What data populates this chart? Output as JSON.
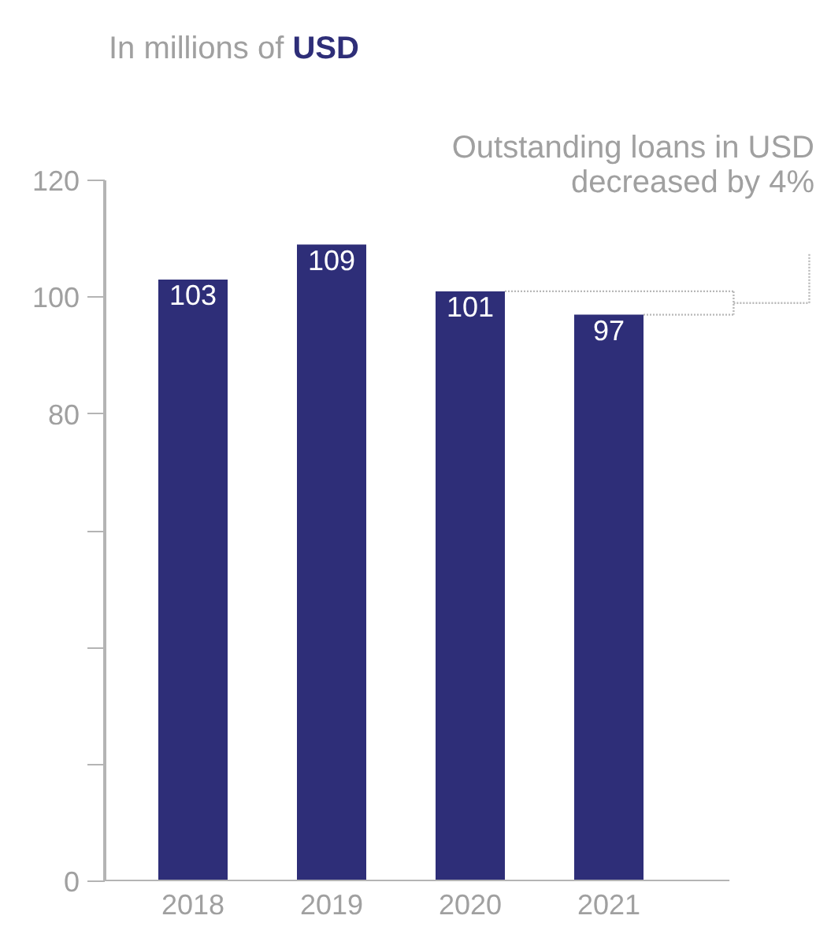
{
  "chart_data": {
    "type": "bar",
    "title": "In millions of USD",
    "categories": [
      "2018",
      "2019",
      "2020",
      "2021"
    ],
    "values": [
      103,
      109,
      101,
      97
    ],
    "color": "#2e2e78",
    "data_labels": true,
    "ylim": [
      0,
      120
    ],
    "yticks": [
      0,
      {
        "value": 20,
        "label": null
      },
      {
        "value": 40,
        "label": null
      },
      {
        "value": 60,
        "label": null
      },
      80,
      100,
      120
    ],
    "annotations": [
      "Outstanding loans in USD\ndecreased by 4%"
    ],
    "grid": false
  }
}
